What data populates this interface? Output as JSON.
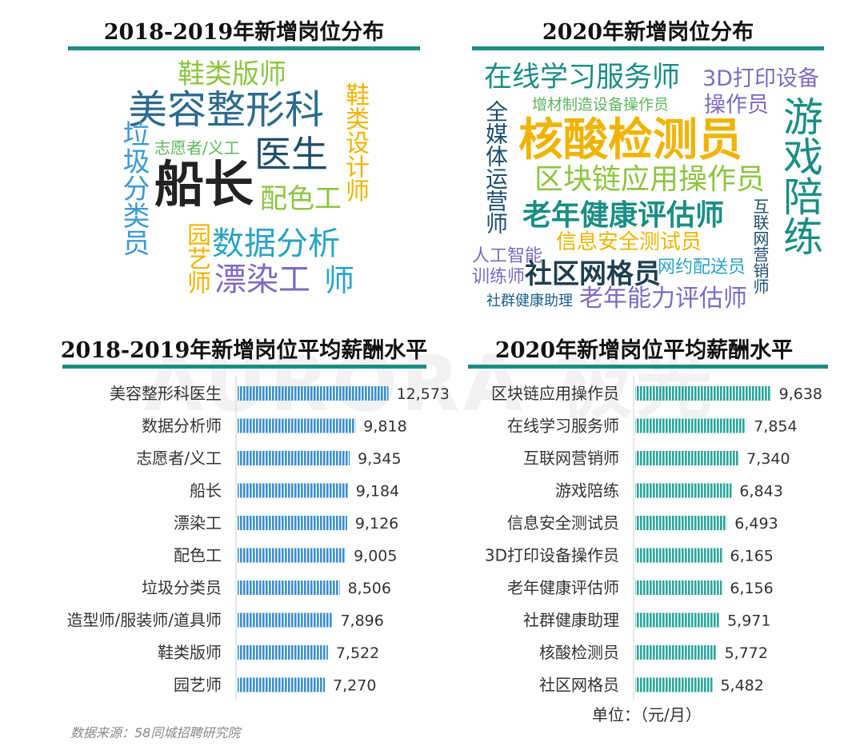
{
  "watermark": "AURORA 极光",
  "clouds": [
    {
      "title": "2018-2019年新增岗位分布",
      "words": [
        {
          "text": "鞋类版师",
          "color": "#8cc63f"
        },
        {
          "text": "美容整形科",
          "color": "#2d6b8f"
        },
        {
          "text": "志愿者/义工",
          "color": "#5cb85c"
        },
        {
          "text": "医生",
          "color": "#1f4f6f"
        },
        {
          "text": "船长",
          "color": "#222222"
        },
        {
          "text": "配色工",
          "color": "#8cc63f"
        },
        {
          "text": "垃圾分类员",
          "color": "#3c9ad6"
        },
        {
          "text": "鞋类设计师",
          "color": "#f0b400"
        },
        {
          "text": "园艺师",
          "color": "#f0b400"
        },
        {
          "text": "数据分析",
          "color": "#29a3c7"
        },
        {
          "text": "漂染工",
          "color": "#7e6bc4"
        },
        {
          "text": "师",
          "color": "#29a3c7"
        }
      ]
    },
    {
      "title": "2020年新增岗位分布",
      "words": [
        {
          "text": "在线学习服务师",
          "color": "#1a8e84"
        },
        {
          "text": "3D打印设备",
          "color": "#7e6bc4"
        },
        {
          "text": "增材制造设备操作员",
          "color": "#5cb85c"
        },
        {
          "text": "操作员",
          "color": "#7e6bc4"
        },
        {
          "text": "全媒体运营师",
          "color": "#1f4f6f"
        },
        {
          "text": "核酸检测员",
          "color": "#f0b400"
        },
        {
          "text": "游戏陪练",
          "color": "#1a8e84"
        },
        {
          "text": "区块链应用操作员",
          "color": "#8cc63f"
        },
        {
          "text": "老年健康评估师",
          "color": "#1a8e84"
        },
        {
          "text": "互联网营销师",
          "color": "#1f4f6f"
        },
        {
          "text": "信息安全测试员",
          "color": "#f0b400"
        },
        {
          "text": "人工智能",
          "color": "#7e6bc4"
        },
        {
          "text": "训练师",
          "color": "#7e6bc4"
        },
        {
          "text": "社区网格员",
          "color": "#1f3f4f"
        },
        {
          "text": "网约配送员",
          "color": "#29a3c7"
        },
        {
          "text": "社群健康助理",
          "color": "#1a5f8a"
        },
        {
          "text": "老年能力评估师",
          "color": "#7e6bc4"
        }
      ]
    }
  ],
  "chart_data": [
    {
      "type": "bar",
      "orientation": "horizontal",
      "title": "2018-2019年新增岗位平均薪酬水平",
      "categories": [
        "美容整形科医生",
        "数据分析师",
        "志愿者/义工",
        "船长",
        "漂染工",
        "配色工",
        "垃圾分类员",
        "造型师/服装师/道具师",
        "鞋类版师",
        "园艺师"
      ],
      "values": [
        12573,
        9818,
        9345,
        9184,
        9126,
        9005,
        8506,
        7896,
        7522,
        7270
      ],
      "value_labels": [
        "12,573",
        "9,818",
        "9,345",
        "9,184",
        "9,126",
        "9,005",
        "8,506",
        "7,896",
        "7,522",
        "7,270"
      ],
      "color": "#3b8fd1",
      "xlim": [
        0,
        13000
      ]
    },
    {
      "type": "bar",
      "orientation": "horizontal",
      "title": "2020年新增岗位平均薪酬水平",
      "categories": [
        "区块链应用操作员",
        "在线学习服务师",
        "互联网营销师",
        "游戏陪练",
        "信息安全测试员",
        "3D打印设备操作员",
        "老年健康评估师",
        "社群健康助理",
        "核酸检测员",
        "社区网格员"
      ],
      "values": [
        9638,
        7854,
        7340,
        6843,
        6493,
        6165,
        6156,
        5971,
        5772,
        5482
      ],
      "value_labels": [
        "9,638",
        "7,854",
        "7,340",
        "6,843",
        "6,493",
        "6,165",
        "6,156",
        "5,971",
        "5,772",
        "5,482"
      ],
      "color": "#2aa59a",
      "xlim": [
        0,
        10000
      ]
    }
  ],
  "unit_label": "单位：（元/月）",
  "source_label": "数据来源：58同城招聘研究院"
}
